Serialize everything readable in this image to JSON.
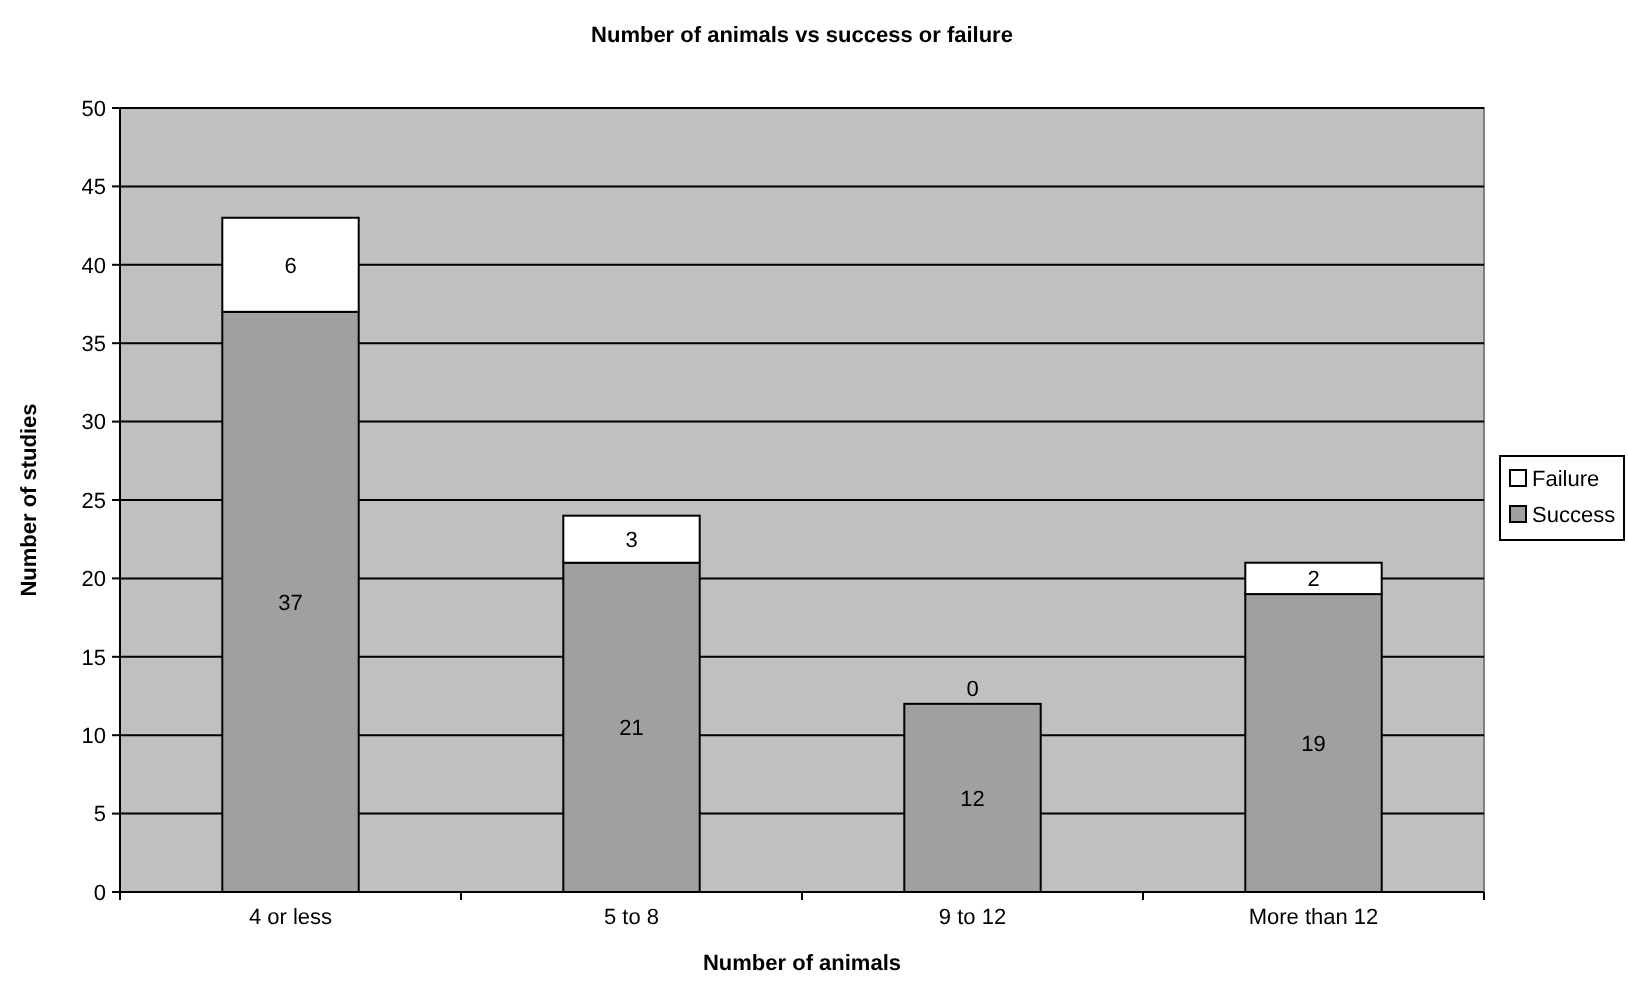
{
  "chart_data": {
    "type": "bar",
    "title": "Number of animals vs success or failure",
    "xlabel": "Number of animals",
    "ylabel": "Number of studies",
    "categories": [
      "4 or less",
      "5 to 8",
      "9 to 12",
      "More than 12"
    ],
    "series": [
      {
        "name": "Success",
        "color": "#a0a0a0",
        "values": [
          37,
          21,
          12,
          19
        ]
      },
      {
        "name": "Failure",
        "color": "#ffffff",
        "values": [
          6,
          3,
          0,
          2
        ]
      }
    ],
    "stacked": true,
    "data_labels": true,
    "ylim": [
      0,
      50
    ],
    "yticks": [
      0,
      5,
      10,
      15,
      20,
      25,
      30,
      35,
      40,
      45,
      50
    ],
    "grid": "y",
    "legend": "right"
  }
}
